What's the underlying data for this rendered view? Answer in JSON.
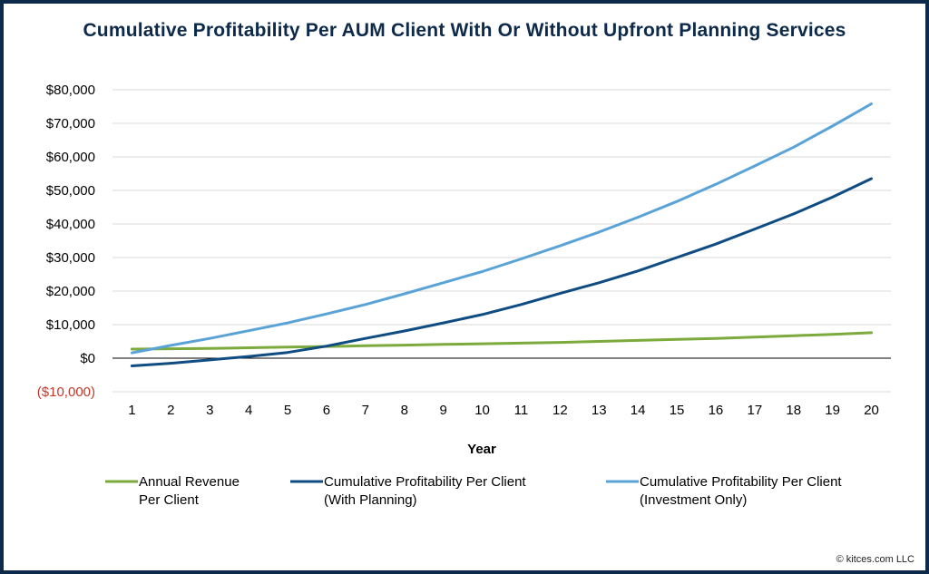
{
  "chart_data": {
    "type": "line",
    "title": "Cumulative Profitability Per AUM Client With Or Without Upfront Planning Services",
    "xlabel": "Year",
    "ylabel": "",
    "x": [
      1,
      2,
      3,
      4,
      5,
      6,
      7,
      8,
      9,
      10,
      11,
      12,
      13,
      14,
      15,
      16,
      17,
      18,
      19,
      20
    ],
    "ylim": [
      -10000,
      80000
    ],
    "yticks": [
      -10000,
      0,
      10000,
      20000,
      30000,
      40000,
      50000,
      60000,
      70000,
      80000
    ],
    "ytick_labels": [
      "($10,000)",
      "$0",
      "$10,000",
      "$20,000",
      "$30,000",
      "$40,000",
      "$50,000",
      "$60,000",
      "$70,000",
      "$80,000"
    ],
    "grid": true,
    "legend_position": "bottom",
    "series": [
      {
        "name": "Annual Revenue Per Client",
        "legend_lines": [
          "Annual Revenue",
          "Per Client"
        ],
        "color": "#7daa3c",
        "values": [
          2700,
          2800,
          2900,
          3100,
          3300,
          3500,
          3700,
          3900,
          4100,
          4300,
          4500,
          4700,
          5000,
          5300,
          5600,
          5900,
          6300,
          6700,
          7100,
          7600
        ]
      },
      {
        "name": "Cumulative Profitability Per Client (With Planning)",
        "legend_lines": [
          "Cumulative Profitability Per Client",
          "(With Planning)"
        ],
        "color": "#0f4c81",
        "values": [
          -2300,
          -1500,
          -500,
          500,
          1700,
          3600,
          5900,
          8100,
          10500,
          13000,
          16000,
          19300,
          22500,
          26000,
          30000,
          34000,
          38500,
          43000,
          48000,
          53500
        ]
      },
      {
        "name": "Cumulative Profitability Per Client (Investment Only)",
        "legend_lines": [
          "Cumulative Profitability Per Client",
          "(Investment Only)"
        ],
        "color": "#5aa3d6",
        "values": [
          1600,
          3800,
          5900,
          8200,
          10500,
          13200,
          16000,
          19200,
          22500,
          25800,
          29600,
          33500,
          37600,
          42000,
          46700,
          51800,
          57300,
          62900,
          69200,
          75800
        ]
      }
    ]
  },
  "credit": "© kitces.com LLC",
  "colors": {
    "title": "#0d2a4a",
    "negative_tick": "#c0392b",
    "grid": "#d9d9d9",
    "zero_line": "#000000"
  }
}
